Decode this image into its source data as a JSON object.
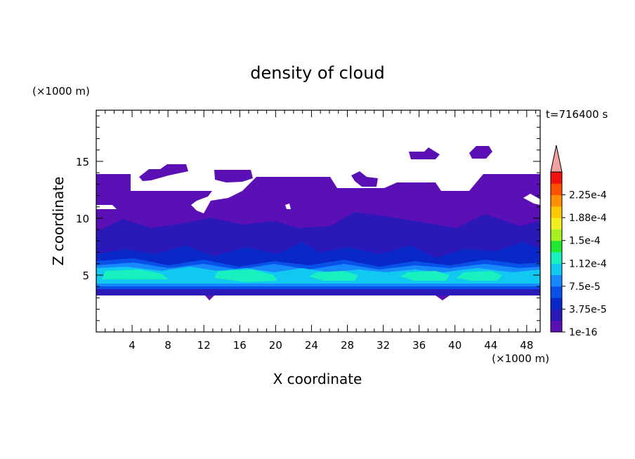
{
  "chart_data": {
    "type": "heatmap",
    "title": "density of cloud",
    "xlabel": "X coordinate",
    "ylabel": "Z coordinate",
    "x_unit": "(×1000 m)",
    "y_unit": "(×1000 m)",
    "time_label": "t=716400 s",
    "xlim": [
      0,
      49.5
    ],
    "ylim": [
      0,
      19.5
    ],
    "x_ticks": [
      4,
      8,
      12,
      16,
      20,
      24,
      28,
      32,
      36,
      40,
      44,
      48
    ],
    "y_ticks": [
      5,
      10,
      15
    ],
    "colorbar": {
      "labels": [
        "1e-16",
        "3.75e-5",
        "7.5e-5",
        "1.12e-4",
        "1.5e-4",
        "1.88e-4",
        "2.25e-4"
      ],
      "colors": [
        "#5a10b4",
        "#2a18b8",
        "#0828c8",
        "#0850e8",
        "#1888ff",
        "#10c8f0",
        "#18f0c0",
        "#20e830",
        "#a8f020",
        "#f0f020",
        "#ffc800",
        "#ff9000",
        "#ff5000",
        "#f01010"
      ],
      "overflow_color": "#f4a0a0"
    },
    "layers": [
      {
        "level": "1e-16",
        "color": "#5a10b4",
        "z_range": [
          3.5,
          14.2
        ]
      },
      {
        "level": "1.9e-5",
        "color": "#2a18b8",
        "z_range": [
          3.6,
          9.5
        ]
      },
      {
        "level": "3.75e-5",
        "color": "#0828c8",
        "z_range": [
          3.8,
          7.5
        ]
      },
      {
        "level": "5.6e-5",
        "color": "#0850e8",
        "z_range": [
          4.0,
          6.6
        ]
      },
      {
        "level": "7.5e-5",
        "color": "#1888ff",
        "z_range": [
          4.3,
          6.2
        ]
      },
      {
        "level": "9.4e-5",
        "color": "#10c8f0",
        "z_range": [
          4.6,
          5.9
        ]
      },
      {
        "level": "1.12e-4",
        "color": "#18f0c0",
        "z_range": [
          5.0,
          5.6
        ]
      }
    ]
  }
}
